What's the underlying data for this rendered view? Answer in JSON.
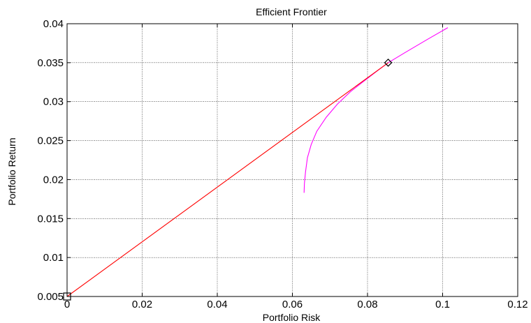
{
  "chart_data": {
    "type": "line",
    "title": "Efficient Frontier",
    "xlabel": "Portfolio Risk",
    "ylabel": "Portfolio Return",
    "xlim": [
      0,
      0.12
    ],
    "ylim": [
      0.005,
      0.04
    ],
    "xticks": [
      0,
      0.02,
      0.04,
      0.06,
      0.08,
      0.1,
      0.12
    ],
    "yticks": [
      0.005,
      0.01,
      0.015,
      0.02,
      0.025,
      0.03,
      0.035,
      0.04
    ],
    "xtick_labels": [
      "0",
      "0.02",
      "0.04",
      "0.06",
      "0.08",
      "0.1",
      "0.12"
    ],
    "ytick_labels": [
      "0.005",
      "0.01",
      "0.015",
      "0.02",
      "0.025",
      "0.03",
      "0.035",
      "0.04"
    ],
    "grid": true,
    "series": [
      {
        "color": "#ff00ff",
        "x": [
          0.0631,
          0.0632,
          0.0635,
          0.064,
          0.065,
          0.0665,
          0.069,
          0.072,
          0.0755,
          0.0795,
          0.083,
          0.0855,
          0.09,
          0.096,
          0.1014
        ],
        "y": [
          0.0183,
          0.0195,
          0.021,
          0.0228,
          0.0245,
          0.0262,
          0.028,
          0.0297,
          0.0313,
          0.0328,
          0.0341,
          0.035,
          0.0363,
          0.038,
          0.0395
        ]
      },
      {
        "color": "#ff0000",
        "x": [
          0,
          0.0855
        ],
        "y": [
          0.005,
          0.035
        ]
      }
    ],
    "markers": [
      {
        "shape": "square",
        "x": 0,
        "y": 0.005,
        "color": "#000000"
      },
      {
        "shape": "diamond",
        "x": 0.0855,
        "y": 0.035,
        "color": "#000000"
      }
    ]
  }
}
